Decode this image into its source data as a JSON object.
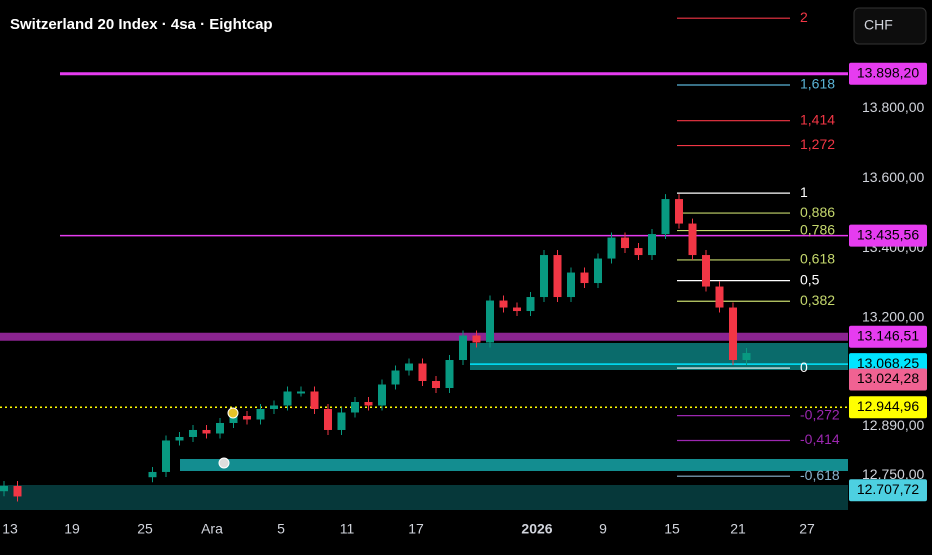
{
  "chart_data": {
    "type": "candlestick",
    "title": "Switzerland 20 Index · 4sa · Eightcap",
    "currency": "CHF",
    "values": [
      12720,
      12690,
      null,
      null,
      null,
      null,
      null,
      null,
      null,
      null,
      null,
      12760,
      12850,
      12860,
      12880,
      12870,
      12900,
      12920,
      12910,
      12940,
      12950,
      12990,
      12990,
      12940,
      12880,
      12930,
      12960,
      12950,
      13010,
      13050,
      13070,
      13020,
      13000,
      13080,
      13150,
      13130,
      13250,
      13230,
      13220,
      13260,
      13380,
      13260,
      13330,
      13300,
      13370,
      13430,
      13400,
      13380,
      13440,
      13540,
      13470,
      13380,
      13290,
      13230,
      13080,
      13100
    ],
    "up_color": "#089981",
    "down_color": "#f23645",
    "ylim": [
      12637,
      14109
    ],
    "yticks": [
      {
        "value": 13800,
        "label": "13.800,00"
      },
      {
        "value": 13600,
        "label": "13.600,00"
      },
      {
        "value": 13400,
        "label": "13.400,00"
      },
      {
        "value": 13200,
        "label": "13.200,00"
      },
      {
        "value": 12890,
        "label": "12.890,00"
      },
      {
        "value": 12750,
        "label": "12.750,00"
      }
    ],
    "xlabels": [
      "13",
      "19",
      "25",
      "Ara",
      "5",
      "11",
      "17",
      "2026",
      "9",
      "15",
      "21",
      "27"
    ],
    "price_lines": [
      {
        "value": 13898.2,
        "label": "13.898,20",
        "color": "#e63cf0"
      },
      {
        "value": 13435.56,
        "label": "13.435,56",
        "color": "#e63cf0"
      },
      {
        "value": 13146.51,
        "label": "13.146,51",
        "color": "#e63cf0"
      },
      {
        "value": 13068.25,
        "label": "13.068,25",
        "color": "#00e5ff"
      },
      {
        "value": 13024.28,
        "label": "13.024,28",
        "color": "#f06292"
      },
      {
        "value": 12944.96,
        "label": "12.944,96",
        "color": "#ffff00"
      },
      {
        "value": 12707.72,
        "label": "12.707,72",
        "color": "#4dd0e1"
      }
    ],
    "fib_levels": [
      {
        "value": 2,
        "label": "2",
        "price": 14057,
        "color": "#f23645"
      },
      {
        "value": 1.618,
        "label": "1,618",
        "price": 13866,
        "color": "#5ab4d6"
      },
      {
        "value": 1.414,
        "label": "1,414",
        "price": 13764,
        "color": "#f23645"
      },
      {
        "value": 1.272,
        "label": "1,272",
        "price": 13693,
        "color": "#f23645"
      },
      {
        "value": 1,
        "label": "1",
        "price": 13557,
        "color": "#ffffff"
      },
      {
        "value": 0.886,
        "label": "0,886",
        "price": 13500,
        "color": "#c5d86d"
      },
      {
        "value": 0.786,
        "label": "0,786",
        "price": 13450,
        "color": "#c5d86d"
      },
      {
        "value": 0.618,
        "label": "0,618",
        "price": 13366,
        "color": "#c5d86d"
      },
      {
        "value": 0.5,
        "label": "0,5",
        "price": 13307,
        "color": "#ffffff"
      },
      {
        "value": 0.382,
        "label": "0,382",
        "price": 13248,
        "color": "#c5d86d"
      },
      {
        "value": 0,
        "label": "0",
        "price": 13057,
        "color": "#ffffff"
      },
      {
        "value": -0.272,
        "label": "-0,272",
        "price": 12921,
        "color": "#9c27b0"
      },
      {
        "value": -0.414,
        "label": "-0,414",
        "price": 12850,
        "color": "#9c27b0"
      },
      {
        "value": -0.618,
        "label": "-0,618",
        "price": 12748,
        "color": "#8ab4cf"
      }
    ]
  }
}
